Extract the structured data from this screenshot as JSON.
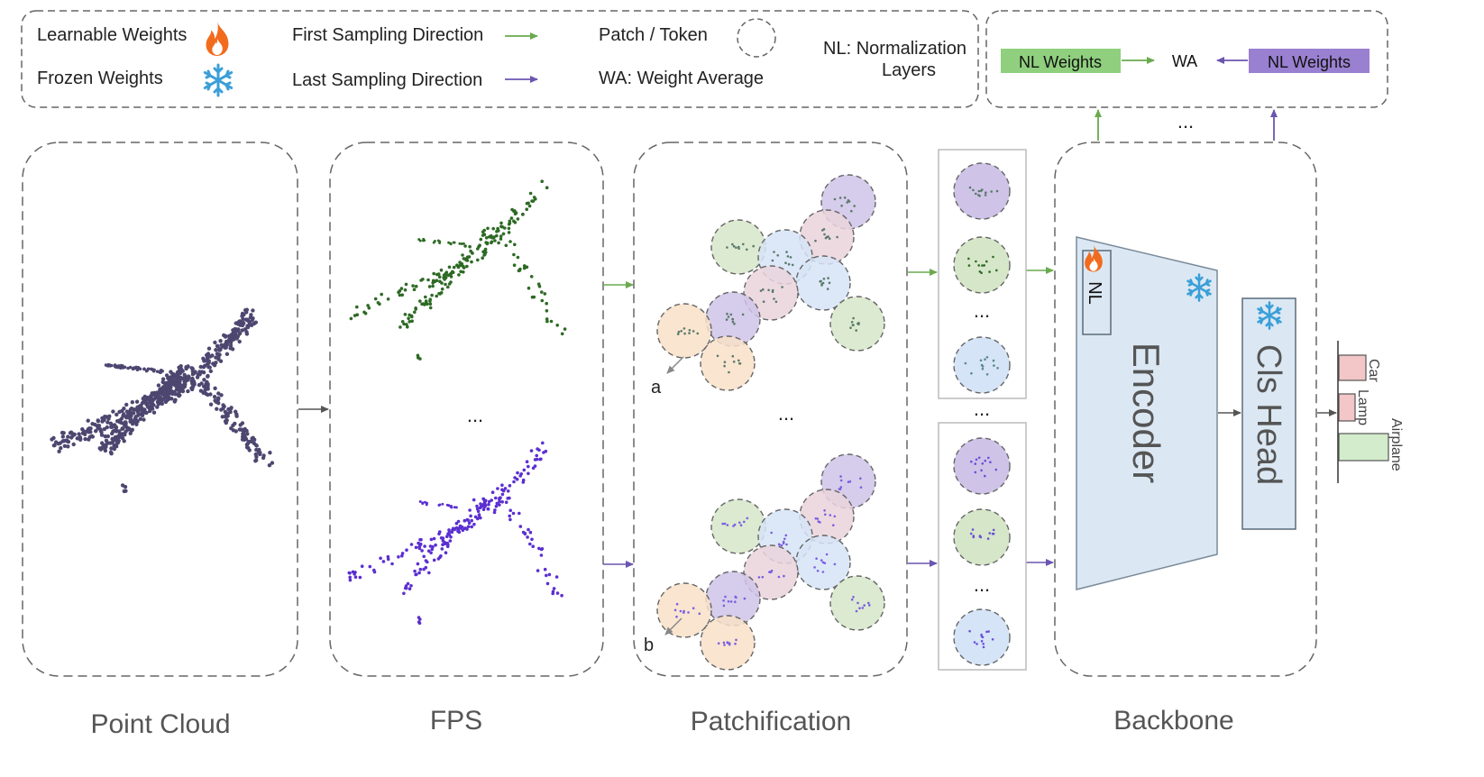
{
  "legend": {
    "learnable": "Learnable Weights",
    "frozen": "Frozen Weights",
    "first_dir": "First Sampling Direction",
    "last_dir": "Last Sampling Direction",
    "patch": "Patch / Token",
    "wa": "WA: Weight Average",
    "nl_line1": "NL: Normalization",
    "nl_line2": "Layers"
  },
  "wa_box": {
    "left": "NL Weights",
    "center": "WA",
    "right": "NL Weights",
    "ellipsis": "..."
  },
  "stages": {
    "point_cloud": "Point Cloud",
    "fps": "FPS",
    "patchification": "Patchification",
    "backbone": "Backbone"
  },
  "markers": {
    "a": "a",
    "b": "b",
    "ellipsis": "..."
  },
  "backbone": {
    "nl": "NL",
    "encoder": "Encoder",
    "cls_head": "Cls Head"
  },
  "classes": [
    "Car",
    "Lamp",
    "Airplane"
  ],
  "colors": {
    "green": "#6aaa4f",
    "purple": "#6b55b0",
    "nl_green": "#8fcf7e",
    "nl_purple": "#9a80d0",
    "encoder_fill": "#dbe8f3",
    "fire": "#f26b1d",
    "snow": "#3b9fd8",
    "patch_purple": "#cfc3e8",
    "patch_blue": "#d6e4f7",
    "patch_pink": "#ead3dc",
    "patch_green": "#d6e6c9",
    "patch_orange": "#f8e1c8",
    "bar_car": "#f3c6c8",
    "bar_airplane": "#d3eccb"
  }
}
